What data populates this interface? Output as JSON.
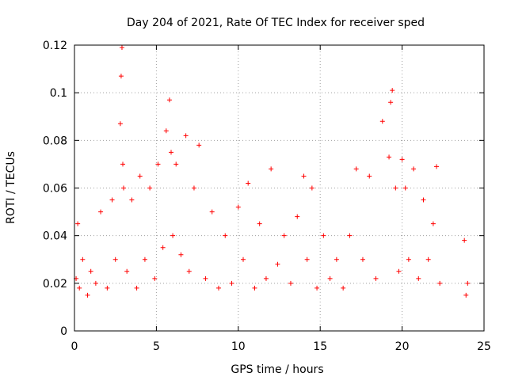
{
  "chart_data": {
    "type": "scatter",
    "title": "Day 204 of 2021, Rate Of TEC Index for receiver sped",
    "xlabel": "GPS time / hours",
    "ylabel": "ROTI / TECUs",
    "xlim": [
      0,
      25
    ],
    "ylim": [
      0,
      0.12
    ],
    "xticks": [
      0,
      5,
      10,
      15,
      20,
      25
    ],
    "yticks": [
      0,
      0.02,
      0.04,
      0.06,
      0.08,
      0.1,
      0.12
    ],
    "xtick_labels": [
      "0",
      "5",
      "10",
      "15",
      "20",
      "25"
    ],
    "ytick_labels": [
      "0",
      "0.02",
      "0.04",
      "0.06",
      "0.08",
      "0.1",
      "0.12"
    ],
    "grid": true,
    "marker": "plus",
    "color": "#ff0000",
    "series": [
      {
        "x": [
          0.1,
          0.2,
          0.3,
          0.5,
          0.8,
          1.0,
          1.3,
          1.6,
          2.0,
          2.3,
          2.5,
          2.8,
          2.85,
          2.9,
          2.95,
          3.0,
          3.2,
          3.5,
          3.8,
          4.0,
          4.3,
          4.6,
          4.9,
          5.1,
          5.4,
          5.6,
          5.8,
          5.9,
          6.0,
          6.2,
          6.5,
          6.8,
          7.0,
          7.3,
          7.6,
          8.0,
          8.4,
          8.8,
          9.2,
          9.6,
          10.0,
          10.3,
          10.6,
          11.0,
          11.3,
          11.7,
          12.0,
          12.4,
          12.8,
          13.2,
          13.6,
          14.0,
          14.2,
          14.5,
          14.8,
          15.2,
          15.6,
          16.0,
          16.4,
          16.8,
          17.2,
          17.6,
          18.0,
          18.4,
          18.8,
          19.2,
          19.3,
          19.4,
          19.6,
          19.8,
          20.0,
          20.2,
          20.4,
          20.7,
          21.0,
          21.3,
          21.6,
          21.9,
          22.1,
          22.3,
          23.8,
          23.9,
          24.0
        ],
        "y": [
          0.022,
          0.045,
          0.018,
          0.03,
          0.015,
          0.025,
          0.02,
          0.05,
          0.018,
          0.055,
          0.03,
          0.087,
          0.107,
          0.119,
          0.07,
          0.06,
          0.025,
          0.055,
          0.018,
          0.065,
          0.03,
          0.06,
          0.022,
          0.07,
          0.035,
          0.084,
          0.097,
          0.075,
          0.04,
          0.07,
          0.032,
          0.082,
          0.025,
          0.06,
          0.078,
          0.022,
          0.05,
          0.018,
          0.04,
          0.02,
          0.052,
          0.03,
          0.062,
          0.018,
          0.045,
          0.022,
          0.068,
          0.028,
          0.04,
          0.02,
          0.048,
          0.065,
          0.03,
          0.06,
          0.018,
          0.04,
          0.022,
          0.03,
          0.018,
          0.04,
          0.068,
          0.03,
          0.065,
          0.022,
          0.088,
          0.073,
          0.096,
          0.101,
          0.06,
          0.025,
          0.072,
          0.06,
          0.03,
          0.068,
          0.022,
          0.055,
          0.03,
          0.045,
          0.069,
          0.02,
          0.038,
          0.015,
          0.02
        ]
      }
    ]
  }
}
